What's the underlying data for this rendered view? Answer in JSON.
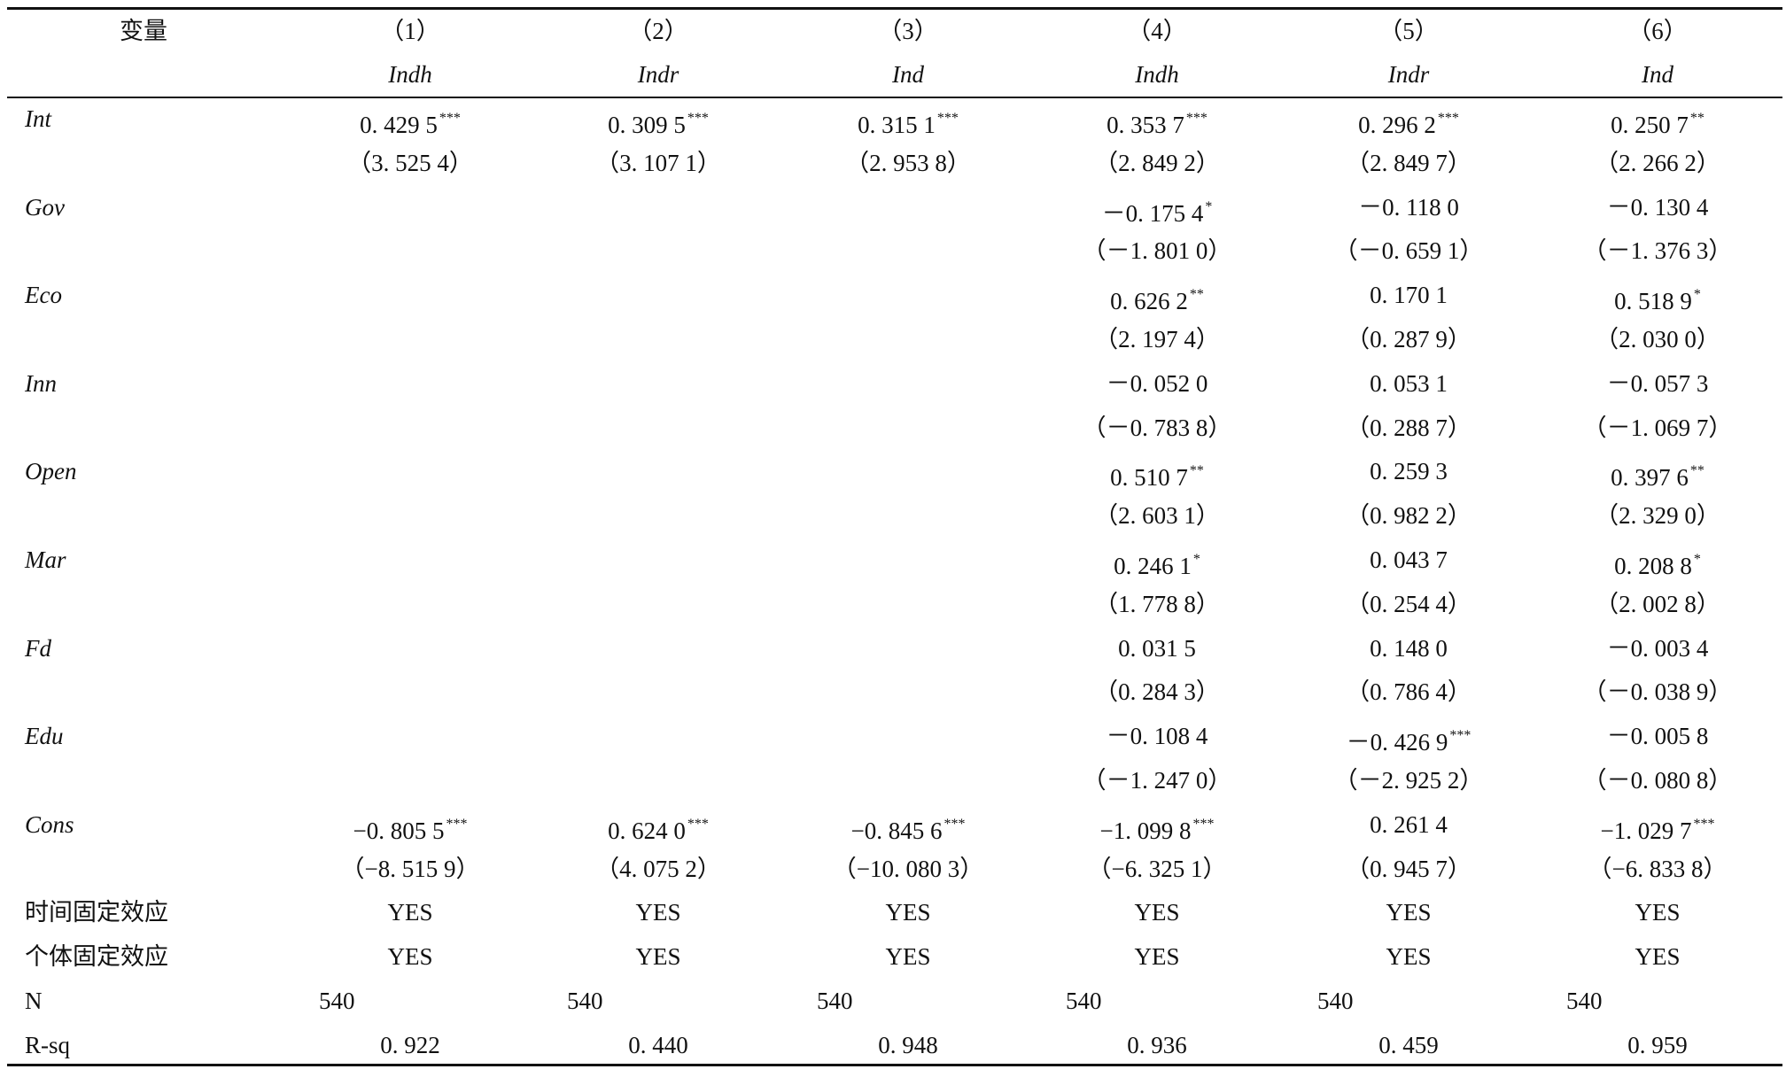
{
  "table": {
    "header": {
      "label": "变量",
      "columns": [
        {
          "num": "（1）",
          "dep": "Indh"
        },
        {
          "num": "（2）",
          "dep": "Indr"
        },
        {
          "num": "（3）",
          "dep": "Ind"
        },
        {
          "num": "（4）",
          "dep": "Indh"
        },
        {
          "num": "（5）",
          "dep": "Indr"
        },
        {
          "num": "（6）",
          "dep": "Ind"
        }
      ]
    },
    "variables": [
      {
        "name": "Int",
        "coef": [
          {
            "v": "0. 429 5",
            "sig": "***"
          },
          {
            "v": "0. 309 5",
            "sig": "***"
          },
          {
            "v": "0. 315 1",
            "sig": "***"
          },
          {
            "v": "0. 353 7",
            "sig": "***"
          },
          {
            "v": "0. 296 2",
            "sig": "***"
          },
          {
            "v": "0. 250 7",
            "sig": "**"
          }
        ],
        "t": [
          "（3. 525 4）",
          "（3. 107 1）",
          "（2. 953 8）",
          "（2. 849 2）",
          "（2. 849 7）",
          "（2. 266 2）"
        ]
      },
      {
        "name": "Gov",
        "coef": [
          null,
          null,
          null,
          {
            "v": "－0. 175 4",
            "sig": "*"
          },
          {
            "v": "－0. 118 0",
            "sig": null
          },
          {
            "v": "－0. 130 4",
            "sig": null
          }
        ],
        "t": [
          null,
          null,
          null,
          "（－1. 801 0）",
          "（－0. 659 1）",
          "（－1. 376 3）"
        ]
      },
      {
        "name": "Eco",
        "coef": [
          null,
          null,
          null,
          {
            "v": "0. 626 2",
            "sig": "**"
          },
          {
            "v": "0. 170 1",
            "sig": null
          },
          {
            "v": "0. 518 9",
            "sig": "*"
          }
        ],
        "t": [
          null,
          null,
          null,
          "（2. 197 4）",
          "（0. 287 9）",
          "（2. 030 0）"
        ]
      },
      {
        "name": "Inn",
        "coef": [
          null,
          null,
          null,
          {
            "v": "－0. 052 0",
            "sig": null
          },
          {
            "v": "0. 053 1",
            "sig": null
          },
          {
            "v": "－0. 057 3",
            "sig": null
          }
        ],
        "t": [
          null,
          null,
          null,
          "（－0. 783 8）",
          "（0. 288 7）",
          "（－1. 069 7）"
        ]
      },
      {
        "name": "Open",
        "coef": [
          null,
          null,
          null,
          {
            "v": "0. 510 7",
            "sig": "**"
          },
          {
            "v": "0. 259 3",
            "sig": null
          },
          {
            "v": "0. 397 6",
            "sig": "**"
          }
        ],
        "t": [
          null,
          null,
          null,
          "（2. 603 1）",
          "（0. 982 2）",
          "（2. 329 0）"
        ]
      },
      {
        "name": "Mar",
        "coef": [
          null,
          null,
          null,
          {
            "v": "0. 246 1",
            "sig": "*"
          },
          {
            "v": "0. 043 7",
            "sig": null
          },
          {
            "v": "0. 208 8",
            "sig": "*"
          }
        ],
        "t": [
          null,
          null,
          null,
          "（1. 778 8）",
          "（0. 254 4）",
          "（2. 002 8）"
        ]
      },
      {
        "name": "Fd",
        "coef": [
          null,
          null,
          null,
          {
            "v": "0. 031 5",
            "sig": null
          },
          {
            "v": "0. 148 0",
            "sig": null
          },
          {
            "v": "－0. 003 4",
            "sig": null
          }
        ],
        "t": [
          null,
          null,
          null,
          "（0. 284 3）",
          "（0. 786 4）",
          "（－0. 038 9）"
        ]
      },
      {
        "name": "Edu",
        "coef": [
          null,
          null,
          null,
          {
            "v": "－0. 108 4",
            "sig": null
          },
          {
            "v": "－0. 426 9",
            "sig": "***"
          },
          {
            "v": "－0. 005 8",
            "sig": null
          }
        ],
        "t": [
          null,
          null,
          null,
          "（－1. 247 0）",
          "（－2. 925 2）",
          "（－0. 080 8）"
        ]
      },
      {
        "name": "Cons",
        "coef": [
          {
            "v": "−0. 805 5",
            "sig": "***"
          },
          {
            "v": "0. 624 0",
            "sig": "***"
          },
          {
            "v": "−0. 845 6",
            "sig": "***"
          },
          {
            "v": "−1. 099 8",
            "sig": "***"
          },
          {
            "v": "0. 261 4",
            "sig": null
          },
          {
            "v": "−1. 029 7",
            "sig": "***"
          }
        ],
        "t": [
          "（−8. 515 9）",
          "（4. 075 2）",
          "（−10. 080 3）",
          "（−6. 325 1）",
          "（0. 945 7）",
          "（−6. 833 8）"
        ]
      }
    ],
    "footer": [
      {
        "label": "时间固定效应",
        "cells": [
          "YES",
          "YES",
          "YES",
          "YES",
          "YES",
          "YES"
        ]
      },
      {
        "label": "个体固定效应",
        "cells": [
          "YES",
          "YES",
          "YES",
          "YES",
          "YES",
          "YES"
        ]
      },
      {
        "label": "N",
        "cells": [
          "540",
          "540",
          "540",
          "540",
          "540",
          "540"
        ],
        "align": "left"
      },
      {
        "label": "R-sq",
        "cells": [
          "0. 922",
          "0. 440",
          "0. 948",
          "0. 936",
          "0. 459",
          "0. 959"
        ]
      }
    ]
  }
}
